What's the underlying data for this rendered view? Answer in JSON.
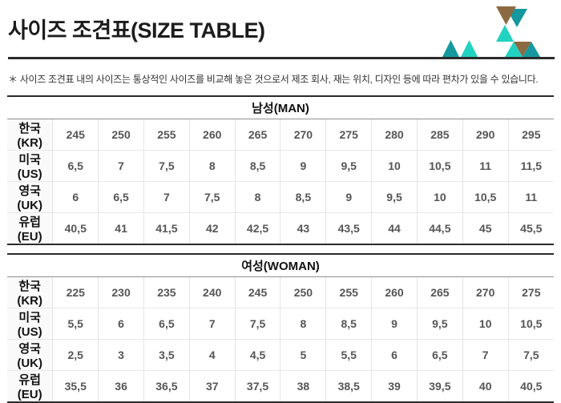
{
  "page": {
    "title": "사이즈 조견표(SIZE TABLE)",
    "note": "＊ 사이즈 조견표 내의 사이즈는 통상적인 사이즈를 비교해 놓은 것으로서 제조 회사, 재는 위치, 디자인 등에 따라 편차가 있을 수 있습니다."
  },
  "colors": {
    "divider_dark": "#2b2b2b",
    "teal_dark": "#16989f",
    "teal_light": "#22d2c1",
    "brown": "#8c6a41",
    "header_rule": "#8f8f8f",
    "row_rule": "#e7e7e7",
    "label_text": "#111111",
    "value_text": "#555555"
  },
  "tables": [
    {
      "header": "남성(MAN)",
      "rows": [
        {
          "label": "한국(KR)",
          "values": [
            "245",
            "250",
            "255",
            "260",
            "265",
            "270",
            "275",
            "280",
            "285",
            "290",
            "295"
          ]
        },
        {
          "label": "미국(US)",
          "values": [
            "6,5",
            "7",
            "7,5",
            "8",
            "8,5",
            "9",
            "9,5",
            "10",
            "10,5",
            "11",
            "11,5"
          ]
        },
        {
          "label": "영국(UK)",
          "values": [
            "6",
            "6,5",
            "7",
            "7,5",
            "8",
            "8,5",
            "9",
            "9,5",
            "10",
            "10,5",
            "11"
          ]
        },
        {
          "label": "유럽(EU)",
          "values": [
            "40,5",
            "41",
            "41,5",
            "42",
            "42,5",
            "43",
            "43,5",
            "44",
            "44,5",
            "45",
            "45,5"
          ]
        }
      ]
    },
    {
      "header": "여성(WOMAN)",
      "rows": [
        {
          "label": "한국(KR)",
          "values": [
            "225",
            "230",
            "235",
            "240",
            "245",
            "250",
            "255",
            "260",
            "265",
            "270",
            "275"
          ]
        },
        {
          "label": "미국(US)",
          "values": [
            "5,5",
            "6",
            "6,5",
            "7",
            "7,5",
            "8",
            "8,5",
            "9",
            "9,5",
            "10",
            "10,5"
          ]
        },
        {
          "label": "영국(UK)",
          "values": [
            "2,5",
            "3",
            "3,5",
            "4",
            "4,5",
            "5",
            "5,5",
            "6",
            "6,5",
            "7",
            "7,5"
          ]
        },
        {
          "label": "유럽(EU)",
          "values": [
            "35,5",
            "36",
            "36,5",
            "37",
            "37,5",
            "38",
            "38,5",
            "39",
            "39,5",
            "40",
            "40,5"
          ]
        }
      ]
    }
  ]
}
